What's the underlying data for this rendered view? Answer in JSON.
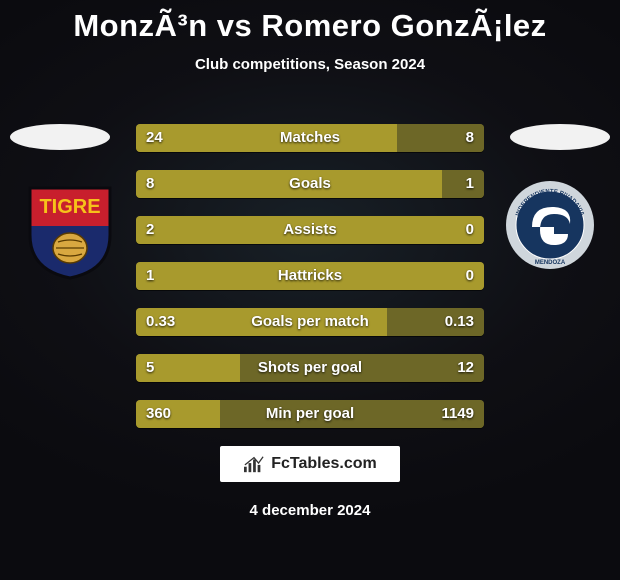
{
  "title": "MonzÃ³n vs Romero GonzÃ¡lez",
  "subtitle": "Club competitions, Season 2024",
  "footer_date": "4 december 2024",
  "brand": "FcTables.com",
  "colors": {
    "bar_left": "#a89a2d",
    "bar_right": "#6d6727",
    "bar_text": "#ffffff"
  },
  "bars": [
    {
      "label": "Matches",
      "left": "24",
      "right": "8",
      "left_pct": 75,
      "right_pct": 25
    },
    {
      "label": "Goals",
      "left": "8",
      "right": "1",
      "left_pct": 88,
      "right_pct": 12
    },
    {
      "label": "Assists",
      "left": "2",
      "right": "0",
      "left_pct": 100,
      "right_pct": 0
    },
    {
      "label": "Hattricks",
      "left": "1",
      "right": "0",
      "left_pct": 100,
      "right_pct": 0
    },
    {
      "label": "Goals per match",
      "left": "0.33",
      "right": "0.13",
      "left_pct": 72,
      "right_pct": 28
    },
    {
      "label": "Shots per goal",
      "left": "5",
      "right": "12",
      "left_pct": 30,
      "right_pct": 70
    },
    {
      "label": "Min per goal",
      "left": "360",
      "right": "1149",
      "left_pct": 24,
      "right_pct": 76
    }
  ],
  "clubs": {
    "left": {
      "name": "Tigre",
      "colors": {
        "top": "#c81f2d",
        "bottom": "#1a2a6c",
        "text": "#f6c21a"
      }
    },
    "right": {
      "name": "Independiente Rivadavia Mendoza",
      "colors": {
        "ring": "#cfd6dc",
        "inner": "#16355f",
        "text": "#ffffff"
      }
    }
  }
}
